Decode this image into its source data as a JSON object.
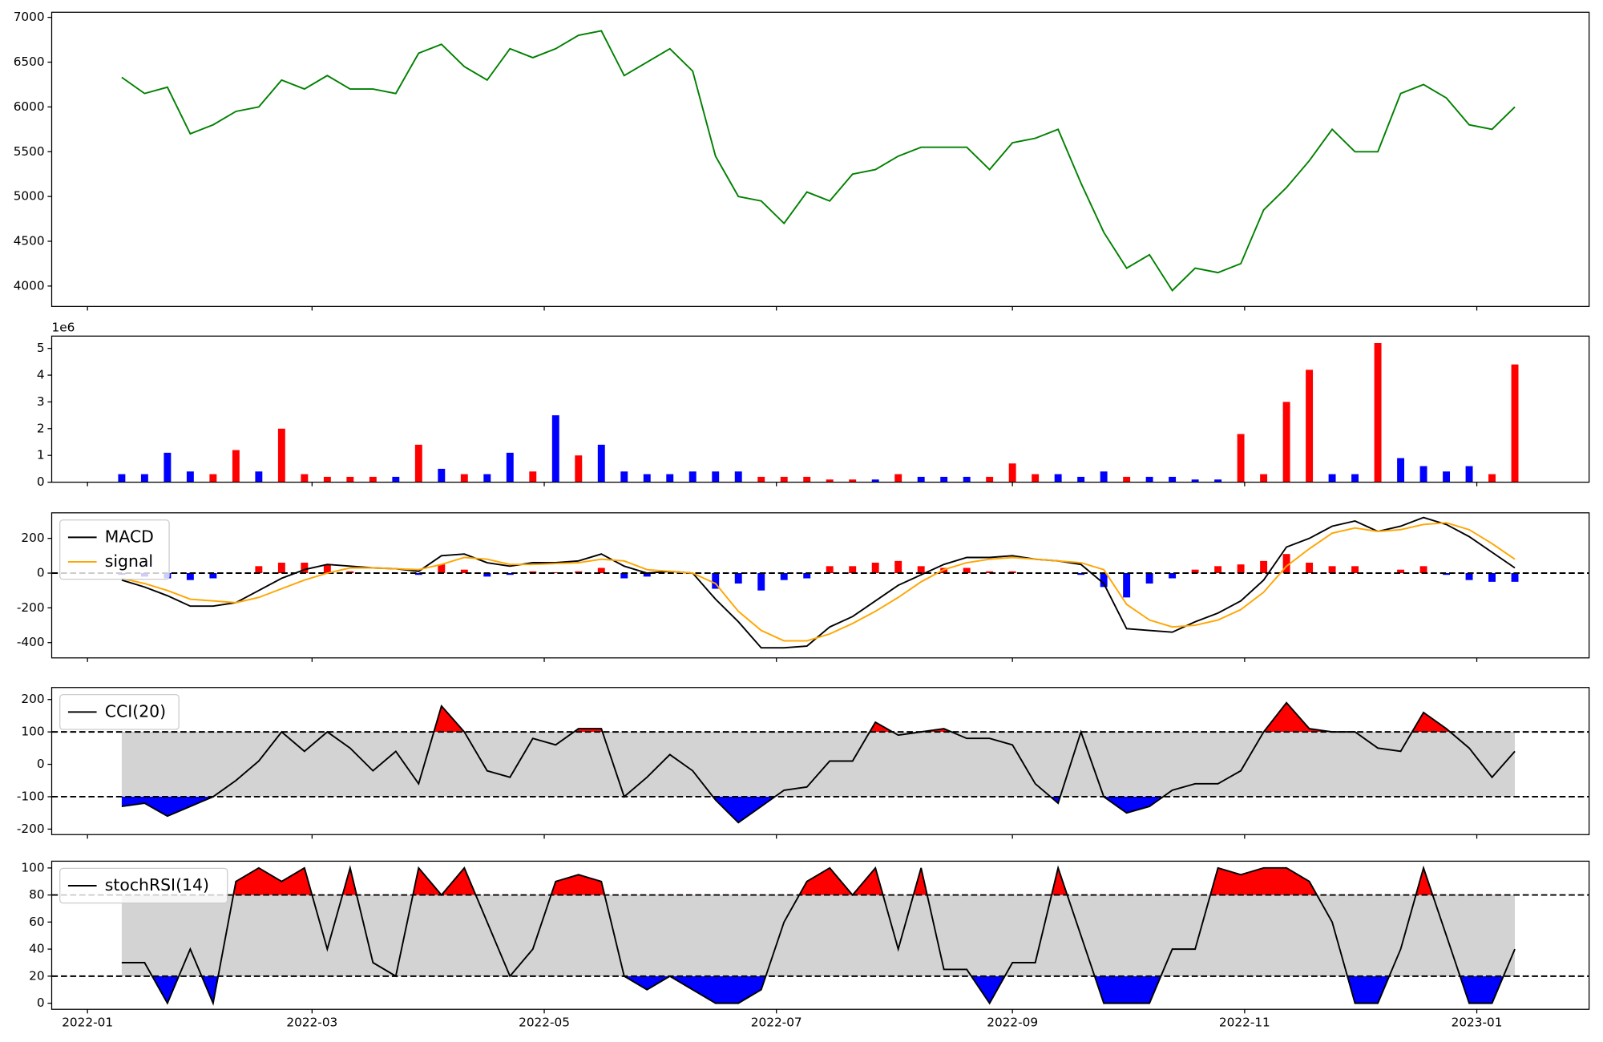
{
  "chart_data": [
    {
      "type": "line",
      "x": [
        19002,
        19008,
        19014,
        19020,
        19026,
        19032,
        19038,
        19044,
        19050,
        19056,
        19062,
        19068,
        19074,
        19080,
        19086,
        19092,
        19098,
        19104,
        19110,
        19116,
        19122,
        19128,
        19134,
        19140,
        19146,
        19152,
        19158,
        19164,
        19170,
        19176,
        19182,
        19188,
        19194,
        19200,
        19206,
        19212,
        19218,
        19224,
        19230,
        19236,
        19242,
        19248,
        19254,
        19260,
        19266,
        19272,
        19278,
        19284,
        19290,
        19296,
        19302,
        19308,
        19314,
        19320,
        19326,
        19332,
        19338,
        19344,
        19350,
        19356,
        19362,
        19368
      ],
      "series": [
        {
          "color": "green",
          "values": [
            6330,
            6150,
            6220,
            5700,
            5800,
            5950,
            6000,
            6300,
            6200,
            6350,
            6200,
            6200,
            6150,
            6600,
            6700,
            6450,
            6300,
            6650,
            6550,
            6650,
            6800,
            6850,
            6350,
            6500,
            6650,
            6400,
            5450,
            5000,
            4950,
            4700,
            5050,
            4950,
            5250,
            5300,
            5450,
            5550,
            5550,
            5550,
            5300,
            5600,
            5650,
            5750,
            5150,
            4600,
            4200,
            4350,
            3950,
            4200,
            4150,
            4250,
            4850,
            5100,
            5400,
            5750,
            5500,
            5500,
            6150,
            6250,
            6100,
            5800,
            5750,
            6000
          ]
        }
      ],
      "ylim": [
        3772,
        7057
      ],
      "yticks": [
        4000,
        4500,
        5000,
        5500,
        6000,
        6500,
        7000
      ]
    },
    {
      "type": "bar",
      "offset_label": "1e6",
      "values": [
        0.3,
        0.3,
        1.1,
        0.4,
        0.3,
        1.2,
        0.4,
        2.0,
        0.3,
        0.2,
        0.2,
        0.2,
        0.2,
        1.4,
        0.5,
        0.3,
        0.3,
        1.1,
        0.4,
        2.5,
        1.0,
        1.4,
        0.4,
        0.3,
        0.3,
        0.4,
        0.4,
        0.4,
        0.2,
        0.2,
        0.2,
        0.1,
        0.1,
        0.1,
        0.3,
        0.2,
        0.2,
        0.2,
        0.2,
        0.7,
        0.3,
        0.3,
        0.2,
        0.4,
        0.2,
        0.2,
        0.2,
        0.1,
        0.1,
        1.8,
        0.3,
        3.0,
        4.2,
        0.3,
        0.3,
        5.2,
        0.9,
        0.6,
        0.4,
        0.6,
        0.3,
        4.4
      ],
      "bar_colors": [
        "blue",
        "blue",
        "blue",
        "blue",
        "red",
        "red",
        "blue",
        "red",
        "red",
        "red",
        "red",
        "red",
        "blue",
        "red",
        "blue",
        "red",
        "blue",
        "blue",
        "red",
        "blue",
        "red",
        "blue",
        "blue",
        "blue",
        "blue",
        "blue",
        "blue",
        "blue",
        "red",
        "red",
        "red",
        "red",
        "red",
        "blue",
        "red",
        "blue",
        "blue",
        "blue",
        "red",
        "red",
        "red",
        "blue",
        "blue",
        "blue",
        "red",
        "blue",
        "blue",
        "blue",
        "blue",
        "red",
        "red",
        "red",
        "red",
        "blue",
        "blue",
        "red",
        "blue",
        "blue",
        "blue",
        "blue",
        "red",
        "red"
      ],
      "ylim": [
        0,
        5.46
      ],
      "yticks": [
        0,
        1,
        2,
        3,
        4,
        5
      ]
    },
    {
      "type": "line",
      "legend": "upper left",
      "thresholds": [
        0
      ],
      "series": [
        {
          "name": "MACD",
          "color": "black",
          "values": [
            -40,
            -80,
            -130,
            -190,
            -190,
            -170,
            -100,
            -30,
            20,
            50,
            40,
            30,
            25,
            10,
            100,
            110,
            60,
            40,
            60,
            60,
            70,
            110,
            40,
            0,
            10,
            0,
            -150,
            -280,
            -430,
            -430,
            -420,
            -310,
            -250,
            -160,
            -70,
            -10,
            50,
            90,
            90,
            100,
            80,
            70,
            50,
            -60,
            -320,
            -330,
            -340,
            -280,
            -230,
            -160,
            -40,
            150,
            200,
            270,
            300,
            240,
            270,
            320,
            280,
            210,
            120,
            30
          ]
        },
        {
          "name": "signal",
          "color": "orange",
          "values": [
            -30,
            -60,
            -100,
            -150,
            -160,
            -170,
            -140,
            -90,
            -40,
            0,
            30,
            30,
            25,
            20,
            50,
            90,
            80,
            50,
            50,
            55,
            60,
            80,
            70,
            20,
            10,
            0,
            -60,
            -220,
            -330,
            -390,
            -390,
            -350,
            -290,
            -220,
            -140,
            -50,
            20,
            60,
            80,
            90,
            80,
            70,
            60,
            20,
            -180,
            -270,
            -310,
            -300,
            -270,
            -210,
            -110,
            40,
            140,
            230,
            260,
            240,
            250,
            280,
            290,
            250,
            170,
            80
          ]
        }
      ],
      "histogram": {
        "pos_color": "red",
        "neg_color": "blue",
        "values": [
          -10,
          -20,
          -30,
          -40,
          -30,
          0,
          40,
          60,
          60,
          50,
          10,
          0,
          0,
          -10,
          50,
          20,
          -20,
          -10,
          10,
          5,
          10,
          30,
          -30,
          -20,
          0,
          0,
          -90,
          -60,
          -100,
          -40,
          -30,
          40,
          40,
          60,
          70,
          40,
          30,
          30,
          10,
          10,
          0,
          0,
          -10,
          -80,
          -140,
          -60,
          -30,
          20,
          40,
          50,
          70,
          110,
          60,
          40,
          40,
          0,
          20,
          40,
          -10,
          -40,
          -50,
          -50
        ]
      },
      "ylim": [
        -488,
        347
      ],
      "yticks": [
        -400,
        -200,
        0,
        200
      ]
    },
    {
      "type": "line",
      "legend": "upper left",
      "thresholds": [
        -100,
        100
      ],
      "band_color": "#d3d3d3",
      "fill_colors": {
        "above": "red",
        "below": "blue"
      },
      "series": [
        {
          "name": "CCI(20)",
          "color": "black",
          "values": [
            -130,
            -120,
            -160,
            -130,
            -100,
            -50,
            10,
            100,
            40,
            100,
            50,
            -20,
            40,
            -60,
            180,
            100,
            -20,
            -40,
            80,
            60,
            110,
            110,
            -100,
            -40,
            30,
            -20,
            -110,
            -180,
            -130,
            -80,
            -70,
            10,
            10,
            130,
            90,
            100,
            110,
            80,
            80,
            60,
            -60,
            -120,
            100,
            -100,
            -150,
            -130,
            -80,
            -60,
            -60,
            -20,
            100,
            190,
            110,
            100,
            100,
            50,
            40,
            160,
            110,
            50,
            -40,
            40
          ]
        }
      ],
      "ylim": [
        -217,
        237
      ],
      "yticks": [
        -200,
        -100,
        0,
        100,
        200
      ]
    },
    {
      "type": "line",
      "legend": "upper left",
      "thresholds": [
        20,
        80
      ],
      "band_color": "#d3d3d3",
      "fill_colors": {
        "above": "red",
        "below": "blue"
      },
      "series": [
        {
          "name": "stochRSI(14)",
          "color": "black",
          "values": [
            30,
            30,
            0,
            40,
            0,
            90,
            100,
            90,
            100,
            40,
            100,
            30,
            20,
            100,
            80,
            100,
            60,
            20,
            40,
            90,
            95,
            90,
            20,
            10,
            20,
            10,
            0,
            0,
            10,
            60,
            90,
            100,
            80,
            100,
            40,
            100,
            25,
            25,
            0,
            30,
            30,
            100,
            50,
            0,
            0,
            0,
            40,
            40,
            100,
            95,
            100,
            100,
            90,
            60,
            0,
            0,
            40,
            100,
            50,
            0,
            0,
            40
          ]
        }
      ],
      "ylim": [
        -4.5,
        105
      ],
      "yticks": [
        0,
        20,
        40,
        60,
        80,
        100
      ],
      "xlim": [
        18983.6,
        19387.5
      ],
      "xticks": [
        {
          "value": 18993,
          "label": "2022-01"
        },
        {
          "value": 19052,
          "label": "2022-03"
        },
        {
          "value": 19113,
          "label": "2022-05"
        },
        {
          "value": 19174,
          "label": "2022-07"
        },
        {
          "value": 19236,
          "label": "2022-09"
        },
        {
          "value": 19297,
          "label": "2022-11"
        },
        {
          "value": 19358,
          "label": "2023-01"
        }
      ]
    }
  ]
}
